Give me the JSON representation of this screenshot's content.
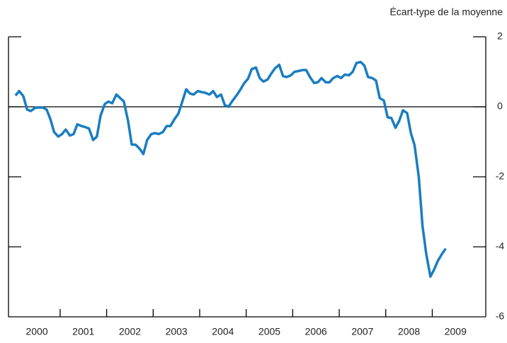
{
  "chart_data": {
    "type": "line",
    "y_axis_label": "Écart-type de la moyenne",
    "x": [
      2000.04,
      2000.12,
      2000.21,
      2000.29,
      2000.37,
      2000.46,
      2000.54,
      2000.62,
      2000.71,
      2000.79,
      2000.87,
      2000.96,
      2001.04,
      2001.12,
      2001.21,
      2001.29,
      2001.37,
      2001.46,
      2001.54,
      2001.62,
      2001.71,
      2001.79,
      2001.87,
      2001.96,
      2002.04,
      2002.12,
      2002.21,
      2002.29,
      2002.37,
      2002.46,
      2002.54,
      2002.62,
      2002.71,
      2002.79,
      2002.87,
      2002.96,
      2003.04,
      2003.12,
      2003.21,
      2003.29,
      2003.37,
      2003.46,
      2003.54,
      2003.62,
      2003.71,
      2003.79,
      2003.87,
      2003.96,
      2004.04,
      2004.12,
      2004.21,
      2004.29,
      2004.37,
      2004.46,
      2004.54,
      2004.62,
      2004.71,
      2004.79,
      2004.87,
      2004.96,
      2005.04,
      2005.12,
      2005.21,
      2005.29,
      2005.37,
      2005.46,
      2005.54,
      2005.62,
      2005.71,
      2005.79,
      2005.87,
      2005.96,
      2006.04,
      2006.12,
      2006.21,
      2006.29,
      2006.37,
      2006.46,
      2006.54,
      2006.62,
      2006.71,
      2006.79,
      2006.87,
      2006.96,
      2007.04,
      2007.12,
      2007.21,
      2007.29,
      2007.37,
      2007.46,
      2007.54,
      2007.62,
      2007.71,
      2007.79,
      2007.87,
      2007.96,
      2008.04,
      2008.12,
      2008.21,
      2008.29,
      2008.37,
      2008.46,
      2008.54,
      2008.62,
      2008.71,
      2008.79,
      2008.87,
      2008.96,
      2009.04,
      2009.12,
      2009.21,
      2009.29
    ],
    "series": [
      {
        "color": "#1a7dc0",
        "values": [
          0.32,
          0.45,
          0.3,
          -0.08,
          -0.12,
          -0.03,
          -0.02,
          -0.02,
          -0.08,
          -0.35,
          -0.72,
          -0.85,
          -0.78,
          -0.65,
          -0.82,
          -0.78,
          -0.5,
          -0.55,
          -0.58,
          -0.62,
          -0.95,
          -0.85,
          -0.25,
          0.08,
          0.15,
          0.1,
          0.35,
          0.25,
          0.15,
          -0.4,
          -1.08,
          -1.08,
          -1.2,
          -1.35,
          -0.95,
          -0.78,
          -0.75,
          -0.78,
          -0.72,
          -0.55,
          -0.55,
          -0.35,
          -0.2,
          0.12,
          0.5,
          0.38,
          0.35,
          0.45,
          0.42,
          0.4,
          0.35,
          0.45,
          0.28,
          0.35,
          0.05,
          0.0,
          0.18,
          0.32,
          0.48,
          0.68,
          0.8,
          1.08,
          1.12,
          0.82,
          0.72,
          0.78,
          0.95,
          1.1,
          1.2,
          0.88,
          0.85,
          0.9,
          1.0,
          1.02,
          1.05,
          1.05,
          0.85,
          0.68,
          0.7,
          0.82,
          0.7,
          0.7,
          0.82,
          0.88,
          0.82,
          0.92,
          0.9,
          1.0,
          1.25,
          1.28,
          1.18,
          0.85,
          0.82,
          0.75,
          0.25,
          0.18,
          -0.3,
          -0.32,
          -0.6,
          -0.4,
          -0.1,
          -0.18,
          -0.75,
          -1.1,
          -2.0,
          -3.4,
          -4.2,
          -4.85,
          -4.65,
          -4.4,
          -4.2,
          -4.05
        ]
      }
    ],
    "xlim": [
      1999.89,
      2010.15
    ],
    "xticks": [
      {
        "value": 2000.5,
        "label": "2000"
      },
      {
        "value": 2001.5,
        "label": "2001"
      },
      {
        "value": 2002.5,
        "label": "2002"
      },
      {
        "value": 2003.5,
        "label": "2003"
      },
      {
        "value": 2004.5,
        "label": "2004"
      },
      {
        "value": 2005.5,
        "label": "2005"
      },
      {
        "value": 2006.5,
        "label": "2006"
      },
      {
        "value": 2007.5,
        "label": "2007"
      },
      {
        "value": 2008.5,
        "label": "2008"
      },
      {
        "value": 2009.5,
        "label": "2009"
      }
    ],
    "ylim": [
      -6,
      2
    ],
    "yticks": [
      2,
      0,
      -2,
      -4,
      -6
    ],
    "zero_line": true
  }
}
